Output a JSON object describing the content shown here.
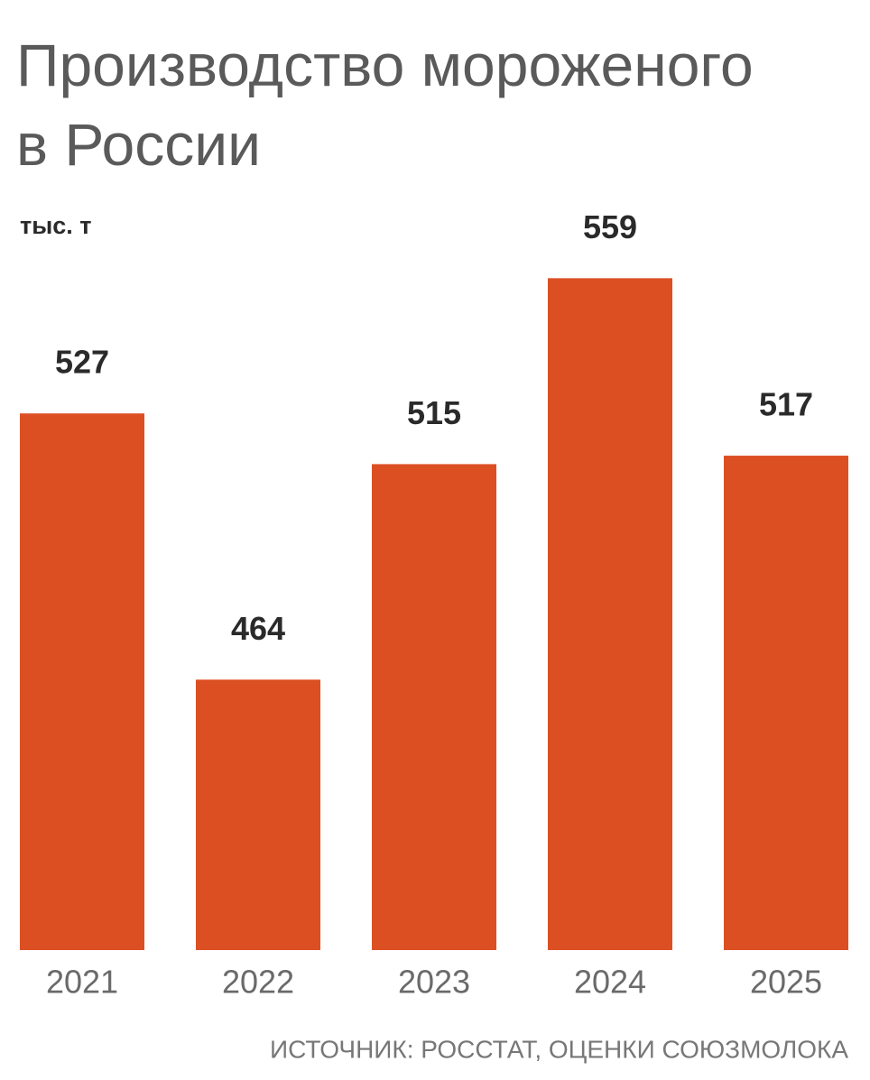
{
  "chart_data": {
    "type": "bar",
    "title": "Производство мороженого в России",
    "subtitle": "тыс. т",
    "categories": [
      "2021",
      "2022",
      "2023",
      "2024",
      "2025"
    ],
    "values": [
      527,
      464,
      515,
      559,
      517
    ],
    "color": "#dc4f23",
    "ylim": [
      400,
      580
    ],
    "source": "ИСТОЧНИК: РОССТАТ, ОЦЕНКИ СОЮЗМОЛОКА"
  }
}
